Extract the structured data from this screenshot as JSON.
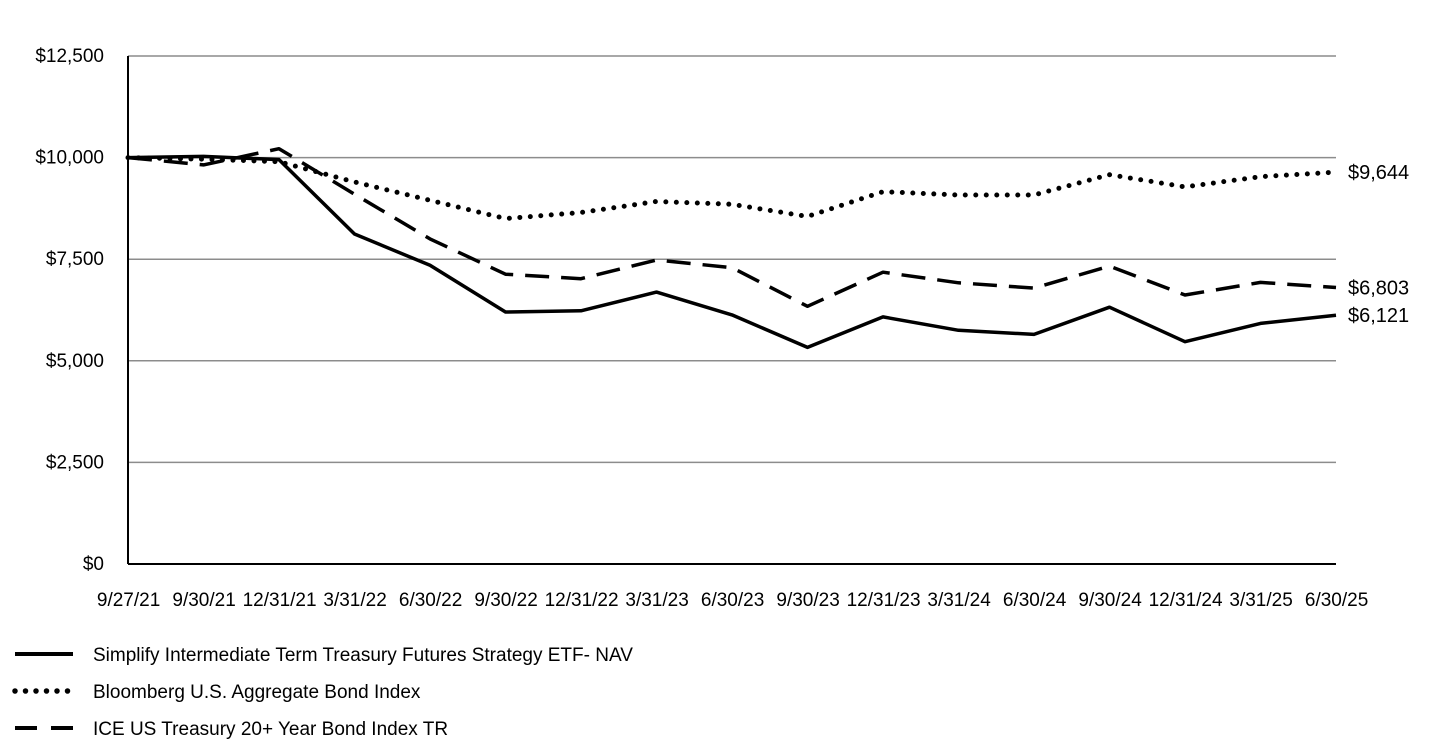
{
  "chart_data": {
    "type": "line",
    "title": "",
    "xlabel": "",
    "ylabel": "",
    "ylim": [
      0,
      12500
    ],
    "y_ticks": [
      0,
      2500,
      5000,
      7500,
      10000,
      12500
    ],
    "y_tick_labels": [
      "$0",
      "$2,500",
      "$5,000",
      "$7,500",
      "$10,000",
      "$12,500"
    ],
    "grid": true,
    "legend_position": "bottom-left",
    "categories": [
      "9/27/21",
      "9/30/21",
      "12/31/21",
      "3/31/22",
      "6/30/22",
      "9/30/22",
      "12/31/22",
      "3/31/23",
      "6/30/23",
      "9/30/23",
      "12/31/23",
      "3/31/24",
      "6/30/24",
      "9/30/24",
      "12/31/24",
      "3/31/25",
      "6/30/25"
    ],
    "series": [
      {
        "name": "Simplify Intermediate Term Treasury Futures Strategy ETF- NAV",
        "style": "solid",
        "values": [
          10000,
          10030,
          9950,
          8120,
          7350,
          6200,
          6230,
          6690,
          6130,
          5330,
          6080,
          5750,
          5650,
          6320,
          5470,
          5920,
          6121
        ],
        "end_label": "$6,121"
      },
      {
        "name": "Bloomberg U.S. Aggregate Bond Index",
        "style": "dotted",
        "values": [
          10000,
          9960,
          9900,
          9400,
          8950,
          8500,
          8650,
          8920,
          8850,
          8550,
          9160,
          9080,
          9080,
          9580,
          9280,
          9530,
          9644
        ],
        "end_label": "$9,644"
      },
      {
        "name": "ICE US Treasury 20+ Year Bond Index TR",
        "style": "dashed",
        "values": [
          10000,
          9820,
          10220,
          9100,
          8000,
          7130,
          7020,
          7480,
          7290,
          6340,
          7180,
          6920,
          6790,
          7330,
          6620,
          6930,
          6803
        ],
        "end_label": "$6,803"
      }
    ]
  }
}
